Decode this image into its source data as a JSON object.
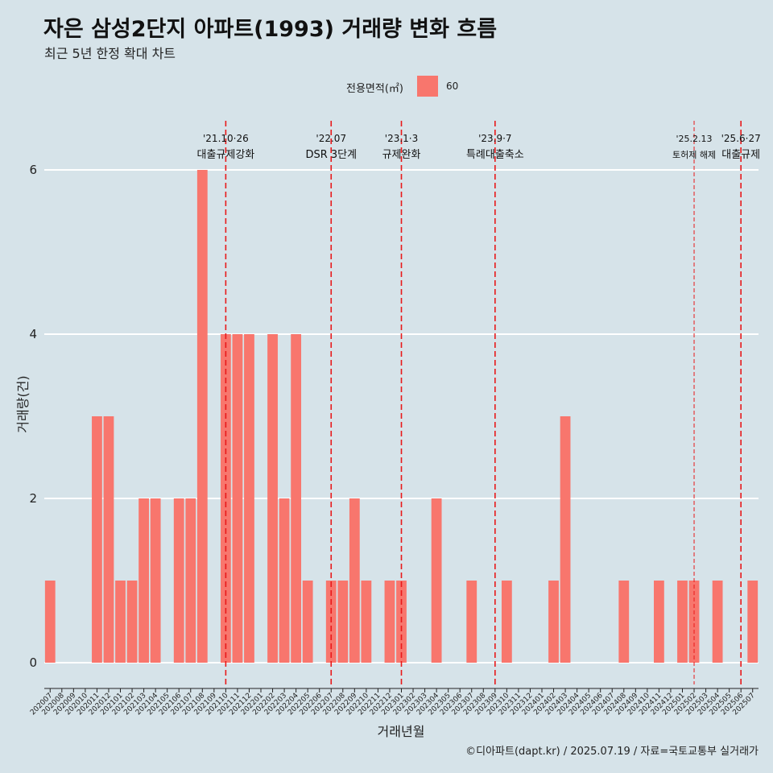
{
  "header": {
    "title": "자은 삼성2단지 아파트(1993) 거래량 변화 흐름",
    "subtitle": "최근 5년 한정 확대 차트"
  },
  "legend": {
    "title": "전용면적(㎡)",
    "items": [
      {
        "label": "60",
        "color": "#f8766d"
      }
    ]
  },
  "caption": "©디아파트(dapt.kr) / 2025.07.19 / 자료=국토교통부 실거래가",
  "colors": {
    "background": "#d6e3e9",
    "bar": "#f8766d",
    "event_line": "#e8191a",
    "grid": "#ffffff"
  },
  "chart_data": {
    "type": "bar",
    "xlabel": "거래년월",
    "ylabel": "거래량(건)",
    "ylim": [
      0,
      6
    ],
    "yticks": [
      0,
      2,
      4,
      6
    ],
    "grid": true,
    "legend_position": "top",
    "categories": [
      "202007",
      "202008",
      "202009",
      "202010",
      "202011",
      "202012",
      "202101",
      "202102",
      "202103",
      "202104",
      "202105",
      "202106",
      "202107",
      "202108",
      "202109",
      "202110",
      "202111",
      "202112",
      "202201",
      "202202",
      "202203",
      "202204",
      "202205",
      "202206",
      "202207",
      "202208",
      "202209",
      "202210",
      "202211",
      "202212",
      "202301",
      "202302",
      "202303",
      "202304",
      "202305",
      "202306",
      "202307",
      "202308",
      "202309",
      "202310",
      "202311",
      "202312",
      "202401",
      "202402",
      "202403",
      "202404",
      "202405",
      "202406",
      "202407",
      "202408",
      "202409",
      "202410",
      "202411",
      "202412",
      "202501",
      "202502",
      "202503",
      "202504",
      "202505",
      "202506",
      "202507"
    ],
    "series": [
      {
        "name": "60",
        "values": [
          1,
          0,
          0,
          0,
          3,
          3,
          1,
          1,
          2,
          2,
          0,
          2,
          2,
          6,
          0,
          4,
          4,
          4,
          0,
          4,
          2,
          4,
          1,
          0,
          1,
          1,
          2,
          1,
          0,
          1,
          1,
          0,
          0,
          2,
          0,
          0,
          1,
          0,
          0,
          1,
          0,
          0,
          0,
          1,
          3,
          0,
          0,
          0,
          0,
          1,
          0,
          0,
          1,
          0,
          1,
          1,
          0,
          1,
          0,
          0,
          1
        ]
      }
    ],
    "events": [
      {
        "category": "202110",
        "date": "'21.10·26",
        "label": "대출규제강화",
        "dashed": "long"
      },
      {
        "category": "202207",
        "date": "'22.07",
        "label": "DSR 3단계",
        "dashed": "long"
      },
      {
        "category": "202301",
        "date": "'23.1·3",
        "label": "규제완화",
        "dashed": "long"
      },
      {
        "category": "202309",
        "date": "'23.9·7",
        "label": "특례대출축소",
        "dashed": "long"
      },
      {
        "category": "202502",
        "date": "'25.2.13",
        "label": "토허제 해제",
        "dashed": "short"
      },
      {
        "category": "202506",
        "date": "'25.6·27",
        "label": "대출규제",
        "dashed": "long"
      }
    ]
  }
}
